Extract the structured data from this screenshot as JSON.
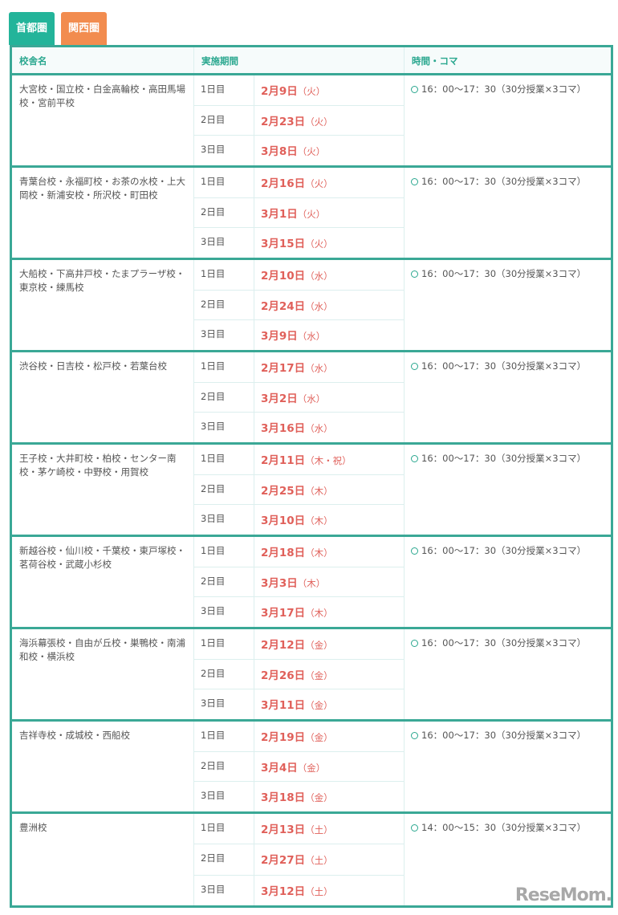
{
  "tabs": [
    {
      "label": "首都圏",
      "active": true
    },
    {
      "label": "関西圏",
      "active": false
    }
  ],
  "headers": {
    "name": "校舎名",
    "period": "実施期間",
    "time": "時間・コマ"
  },
  "colors": {
    "accent": "#23b49a",
    "tab_other": "#f28c4f",
    "date": "#e0605a"
  },
  "groups": [
    {
      "name": "大宮校・国立校・白金高輪校・高田馬場校・宮前平校",
      "time": "16：00～17：30（30分授業×3コマ）",
      "days": [
        {
          "label": "1日目",
          "date": "2月9日",
          "dow": "（火）"
        },
        {
          "label": "2日目",
          "date": "2月23日",
          "dow": "（火）"
        },
        {
          "label": "3日目",
          "date": "3月8日",
          "dow": "（火）"
        }
      ]
    },
    {
      "name": "青葉台校・永福町校・お茶の水校・上大岡校・新浦安校・所沢校・町田校",
      "time": "16：00～17：30（30分授業×3コマ）",
      "days": [
        {
          "label": "1日目",
          "date": "2月16日",
          "dow": "（火）"
        },
        {
          "label": "2日目",
          "date": "3月1日",
          "dow": "（火）"
        },
        {
          "label": "3日目",
          "date": "3月15日",
          "dow": "（火）"
        }
      ]
    },
    {
      "name": "大船校・下高井戸校・たまプラーザ校・東京校・練馬校",
      "time": "16：00～17：30（30分授業×3コマ）",
      "days": [
        {
          "label": "1日目",
          "date": "2月10日",
          "dow": "（水）"
        },
        {
          "label": "2日目",
          "date": "2月24日",
          "dow": "（水）"
        },
        {
          "label": "3日目",
          "date": "3月9日",
          "dow": "（水）"
        }
      ]
    },
    {
      "name": "渋谷校・日吉校・松戸校・若葉台校",
      "time": "16：00～17：30（30分授業×3コマ）",
      "days": [
        {
          "label": "1日目",
          "date": "2月17日",
          "dow": "（水）"
        },
        {
          "label": "2日目",
          "date": "3月2日",
          "dow": "（水）"
        },
        {
          "label": "3日目",
          "date": "3月16日",
          "dow": "（水）"
        }
      ]
    },
    {
      "name": "王子校・大井町校・柏校・センター南校・茅ケ崎校・中野校・用賀校",
      "time": "16：00～17：30（30分授業×3コマ）",
      "days": [
        {
          "label": "1日目",
          "date": "2月11日",
          "dow": "（木・祝）"
        },
        {
          "label": "2日目",
          "date": "2月25日",
          "dow": "（木）"
        },
        {
          "label": "3日目",
          "date": "3月10日",
          "dow": "（木）"
        }
      ]
    },
    {
      "name": "新越谷校・仙川校・千葉校・東戸塚校・茗荷谷校・武蔵小杉校",
      "time": "16：00～17：30（30分授業×3コマ）",
      "days": [
        {
          "label": "1日目",
          "date": "2月18日",
          "dow": "（木）"
        },
        {
          "label": "2日目",
          "date": "3月3日",
          "dow": "（木）"
        },
        {
          "label": "3日目",
          "date": "3月17日",
          "dow": "（木）"
        }
      ]
    },
    {
      "name": "海浜幕張校・自由が丘校・巣鴨校・南浦和校・横浜校",
      "time": "16：00～17：30（30分授業×3コマ）",
      "days": [
        {
          "label": "1日目",
          "date": "2月12日",
          "dow": "（金）"
        },
        {
          "label": "2日目",
          "date": "2月26日",
          "dow": "（金）"
        },
        {
          "label": "3日目",
          "date": "3月11日",
          "dow": "（金）"
        }
      ]
    },
    {
      "name": "吉祥寺校・成城校・西船校",
      "time": "16：00～17：30（30分授業×3コマ）",
      "days": [
        {
          "label": "1日目",
          "date": "2月19日",
          "dow": "（金）"
        },
        {
          "label": "2日目",
          "date": "3月4日",
          "dow": "（金）"
        },
        {
          "label": "3日目",
          "date": "3月18日",
          "dow": "（金）"
        }
      ]
    },
    {
      "name": "豊洲校",
      "time": "14：00～15：30（30分授業×3コマ）",
      "days": [
        {
          "label": "1日目",
          "date": "2月13日",
          "dow": "（土）"
        },
        {
          "label": "2日目",
          "date": "2月27日",
          "dow": "（土）"
        },
        {
          "label": "3日目",
          "date": "3月12日",
          "dow": "（土）"
        }
      ]
    }
  ],
  "watermark": "ReseMom"
}
